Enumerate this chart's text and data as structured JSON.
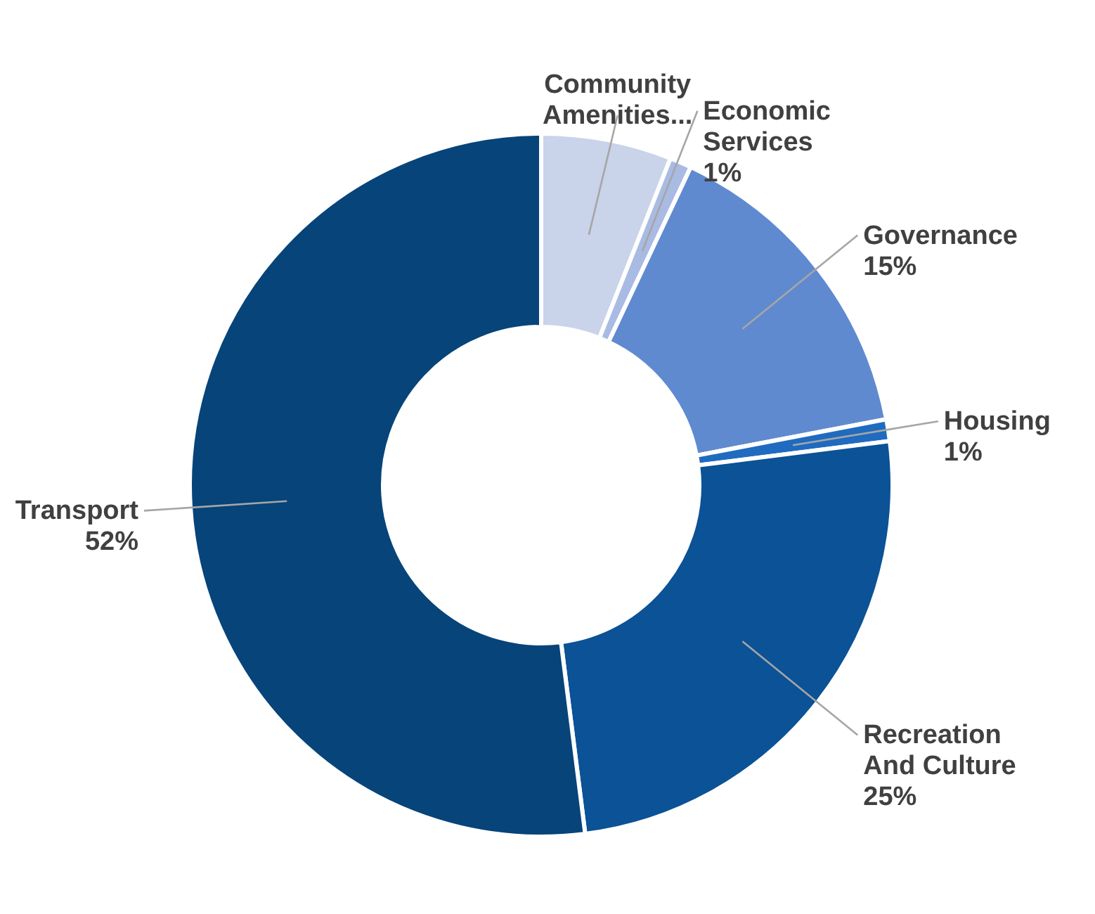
{
  "chart_data": {
    "type": "donut",
    "categories": [
      "Community Amenities...",
      "Economic Services",
      "Governance",
      "Housing",
      "Recreation And Culture",
      "Transport"
    ],
    "values": [
      6,
      1,
      15,
      1,
      25,
      52
    ],
    "value_labels": [
      null,
      "1%",
      "15%",
      "1%",
      "25%",
      "52%"
    ],
    "colors": [
      "#c9d3ea",
      "#a9bbe3",
      "#5f8ad0",
      "#1f6bc0",
      "#0b5296",
      "#064479"
    ]
  }
}
